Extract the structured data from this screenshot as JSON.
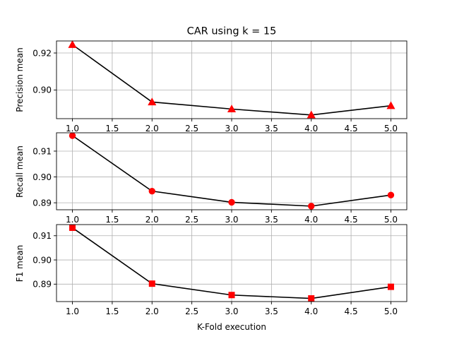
{
  "chart_data": [
    {
      "type": "line",
      "title": "CAR using k = 15",
      "xlabel": "",
      "ylabel": "Precision mean",
      "x": [
        1.0,
        2.0,
        3.0,
        4.0,
        5.0
      ],
      "values": [
        0.9245,
        0.8935,
        0.8897,
        0.8865,
        0.8915
      ],
      "xlim": [
        0.8,
        5.2
      ],
      "ylim": [
        0.8845,
        0.9265
      ],
      "xticks": [
        "1.0",
        "1.5",
        "2.0",
        "2.5",
        "3.0",
        "3.5",
        "4.0",
        "4.5",
        "5.0"
      ],
      "yticks": [
        "0.92",
        "0.90"
      ],
      "marker": "triangle",
      "line_color": "#000000",
      "marker_color": "#ff0000",
      "grid": true
    },
    {
      "type": "line",
      "title": "",
      "xlabel": "",
      "ylabel": "Recall mean",
      "x": [
        1.0,
        2.0,
        3.0,
        4.0,
        5.0
      ],
      "values": [
        0.916,
        0.8945,
        0.8902,
        0.8887,
        0.893
      ],
      "xlim": [
        0.8,
        5.2
      ],
      "ylim": [
        0.8873,
        0.9171
      ],
      "xticks": [
        "1.0",
        "1.5",
        "2.0",
        "2.5",
        "3.0",
        "3.5",
        "4.0",
        "4.5",
        "5.0"
      ],
      "yticks": [
        "0.91",
        "0.90",
        "0.89"
      ],
      "marker": "circle",
      "line_color": "#000000",
      "marker_color": "#ff0000",
      "grid": true
    },
    {
      "type": "line",
      "title": "",
      "xlabel": "K-Fold execution",
      "ylabel": "F1 mean",
      "x": [
        1.0,
        2.0,
        3.0,
        4.0,
        5.0
      ],
      "values": [
        0.9133,
        0.8902,
        0.8855,
        0.8841,
        0.8889
      ],
      "xlim": [
        0.8,
        5.2
      ],
      "ylim": [
        0.8828,
        0.9146
      ],
      "xticks": [
        "1.0",
        "1.5",
        "2.0",
        "2.5",
        "3.0",
        "3.5",
        "4.0",
        "4.5",
        "5.0"
      ],
      "yticks": [
        "0.91",
        "0.90",
        "0.89"
      ],
      "marker": "square",
      "line_color": "#000000",
      "marker_color": "#ff0000",
      "grid": true
    }
  ]
}
